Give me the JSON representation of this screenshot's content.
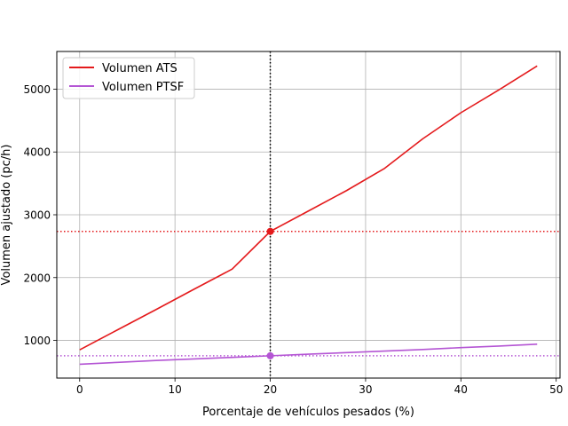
{
  "chart_data": {
    "type": "line",
    "xlabel": "Porcentaje de vehículos pesados (%)",
    "ylabel": "Volumen ajustado (pc/h)",
    "xlim": [
      -2.4,
      50.4
    ],
    "ylim": [
      400,
      5600
    ],
    "xticks": [
      0,
      10,
      20,
      30,
      40,
      50
    ],
    "yticks": [
      1000,
      2000,
      3000,
      4000,
      5000
    ],
    "grid": true,
    "legend_position": "top-left",
    "series": [
      {
        "name": "Volumen ATS",
        "color": "#e41a1c",
        "x": [
          0,
          4,
          8,
          12,
          16,
          20,
          24,
          28,
          32,
          36,
          40,
          44,
          48
        ],
        "y": [
          850,
          1170,
          1490,
          1815,
          2135,
          2735,
          3060,
          3385,
          3740,
          4210,
          4625,
          4990,
          5370
        ]
      },
      {
        "name": "Volumen PTSF",
        "color": "#b455d4",
        "x": [
          0,
          4,
          8,
          12,
          16,
          20,
          24,
          28,
          32,
          36,
          40,
          44,
          48
        ],
        "y": [
          620,
          650,
          680,
          705,
          730,
          755,
          780,
          805,
          830,
          855,
          885,
          910,
          940
        ]
      }
    ],
    "reference_lines": {
      "vertical_x": 20,
      "vertical_color": "#000000",
      "horizontal": [
        {
          "y": 2735,
          "color": "#e41a1c"
        },
        {
          "y": 755,
          "color": "#b455d4"
        }
      ]
    },
    "markers": [
      {
        "x": 20,
        "y": 2735,
        "color": "#e41a1c"
      },
      {
        "x": 20,
        "y": 755,
        "color": "#b455d4"
      }
    ]
  }
}
